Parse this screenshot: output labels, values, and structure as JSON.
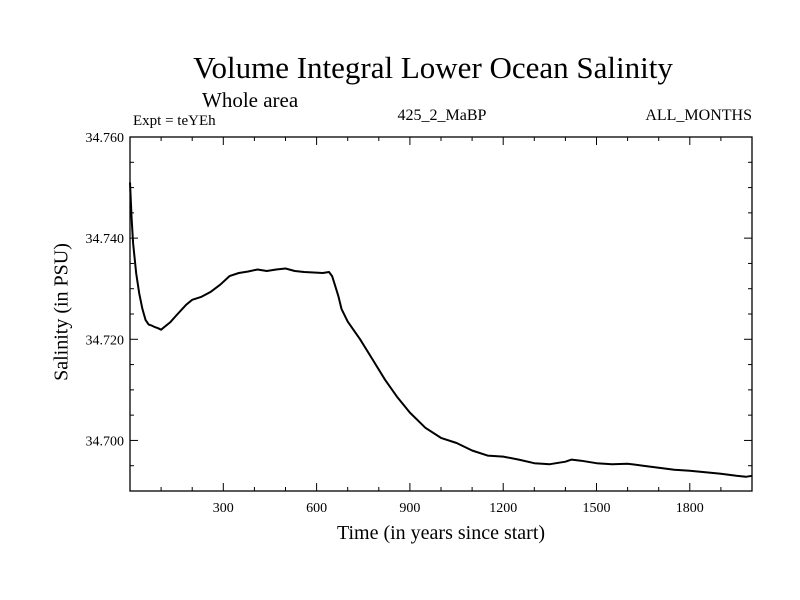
{
  "chart_data": {
    "type": "line",
    "title": "Volume Integral Lower Ocean Salinity",
    "subtitle": "Whole area",
    "experiment": "Expt = teYEh",
    "case_label": "425_2_MaBP",
    "months_label": "ALL_MONTHS",
    "xlabel": "Time (in years since start)",
    "ylabel": "Salinity (in PSU)",
    "xlim": [
      0,
      2000
    ],
    "ylim": [
      34.69,
      34.76
    ],
    "xticks": [
      300,
      600,
      900,
      1200,
      1500,
      1800
    ],
    "xtick_labels": [
      "300",
      "600",
      "900",
      "1200",
      "1500",
      "1800"
    ],
    "yticks": [
      34.7,
      34.72,
      34.74,
      34.76
    ],
    "ytick_labels": [
      "34.700",
      "34.720",
      "34.740",
      "34.760"
    ],
    "grid": false,
    "series": [
      {
        "name": "Salinity",
        "x": [
          0,
          5,
          10,
          20,
          30,
          40,
          50,
          60,
          70,
          80,
          90,
          100,
          110,
          130,
          150,
          180,
          200,
          230,
          260,
          290,
          320,
          350,
          380,
          410,
          440,
          470,
          500,
          530,
          560,
          590,
          620,
          640,
          650,
          660,
          670,
          680,
          700,
          740,
          780,
          820,
          860,
          900,
          950,
          1000,
          1050,
          1100,
          1150,
          1200,
          1250,
          1300,
          1350,
          1400,
          1420,
          1450,
          1500,
          1550,
          1600,
          1650,
          1700,
          1750,
          1800,
          1850,
          1900,
          1950,
          1980,
          2000
        ],
        "y": [
          34.751,
          34.744,
          34.739,
          34.733,
          34.729,
          34.726,
          34.7238,
          34.7229,
          34.7227,
          34.7224,
          34.7222,
          34.7219,
          34.7224,
          34.7234,
          34.7248,
          34.7268,
          34.7278,
          34.7284,
          34.7294,
          34.7308,
          34.7325,
          34.7331,
          34.7334,
          34.7338,
          34.7335,
          34.7338,
          34.734,
          34.7335,
          34.7333,
          34.7332,
          34.7331,
          34.7333,
          34.7325,
          34.7305,
          34.7285,
          34.726,
          34.7235,
          34.72,
          34.716,
          34.712,
          34.7085,
          34.7055,
          34.7025,
          34.7005,
          34.6995,
          34.698,
          34.697,
          34.6968,
          34.6962,
          34.6955,
          34.6953,
          34.6958,
          34.6962,
          34.696,
          34.6955,
          34.6953,
          34.6954,
          34.695,
          34.6946,
          34.6942,
          34.694,
          34.6937,
          34.6934,
          34.693,
          34.6928,
          34.693
        ]
      }
    ]
  }
}
